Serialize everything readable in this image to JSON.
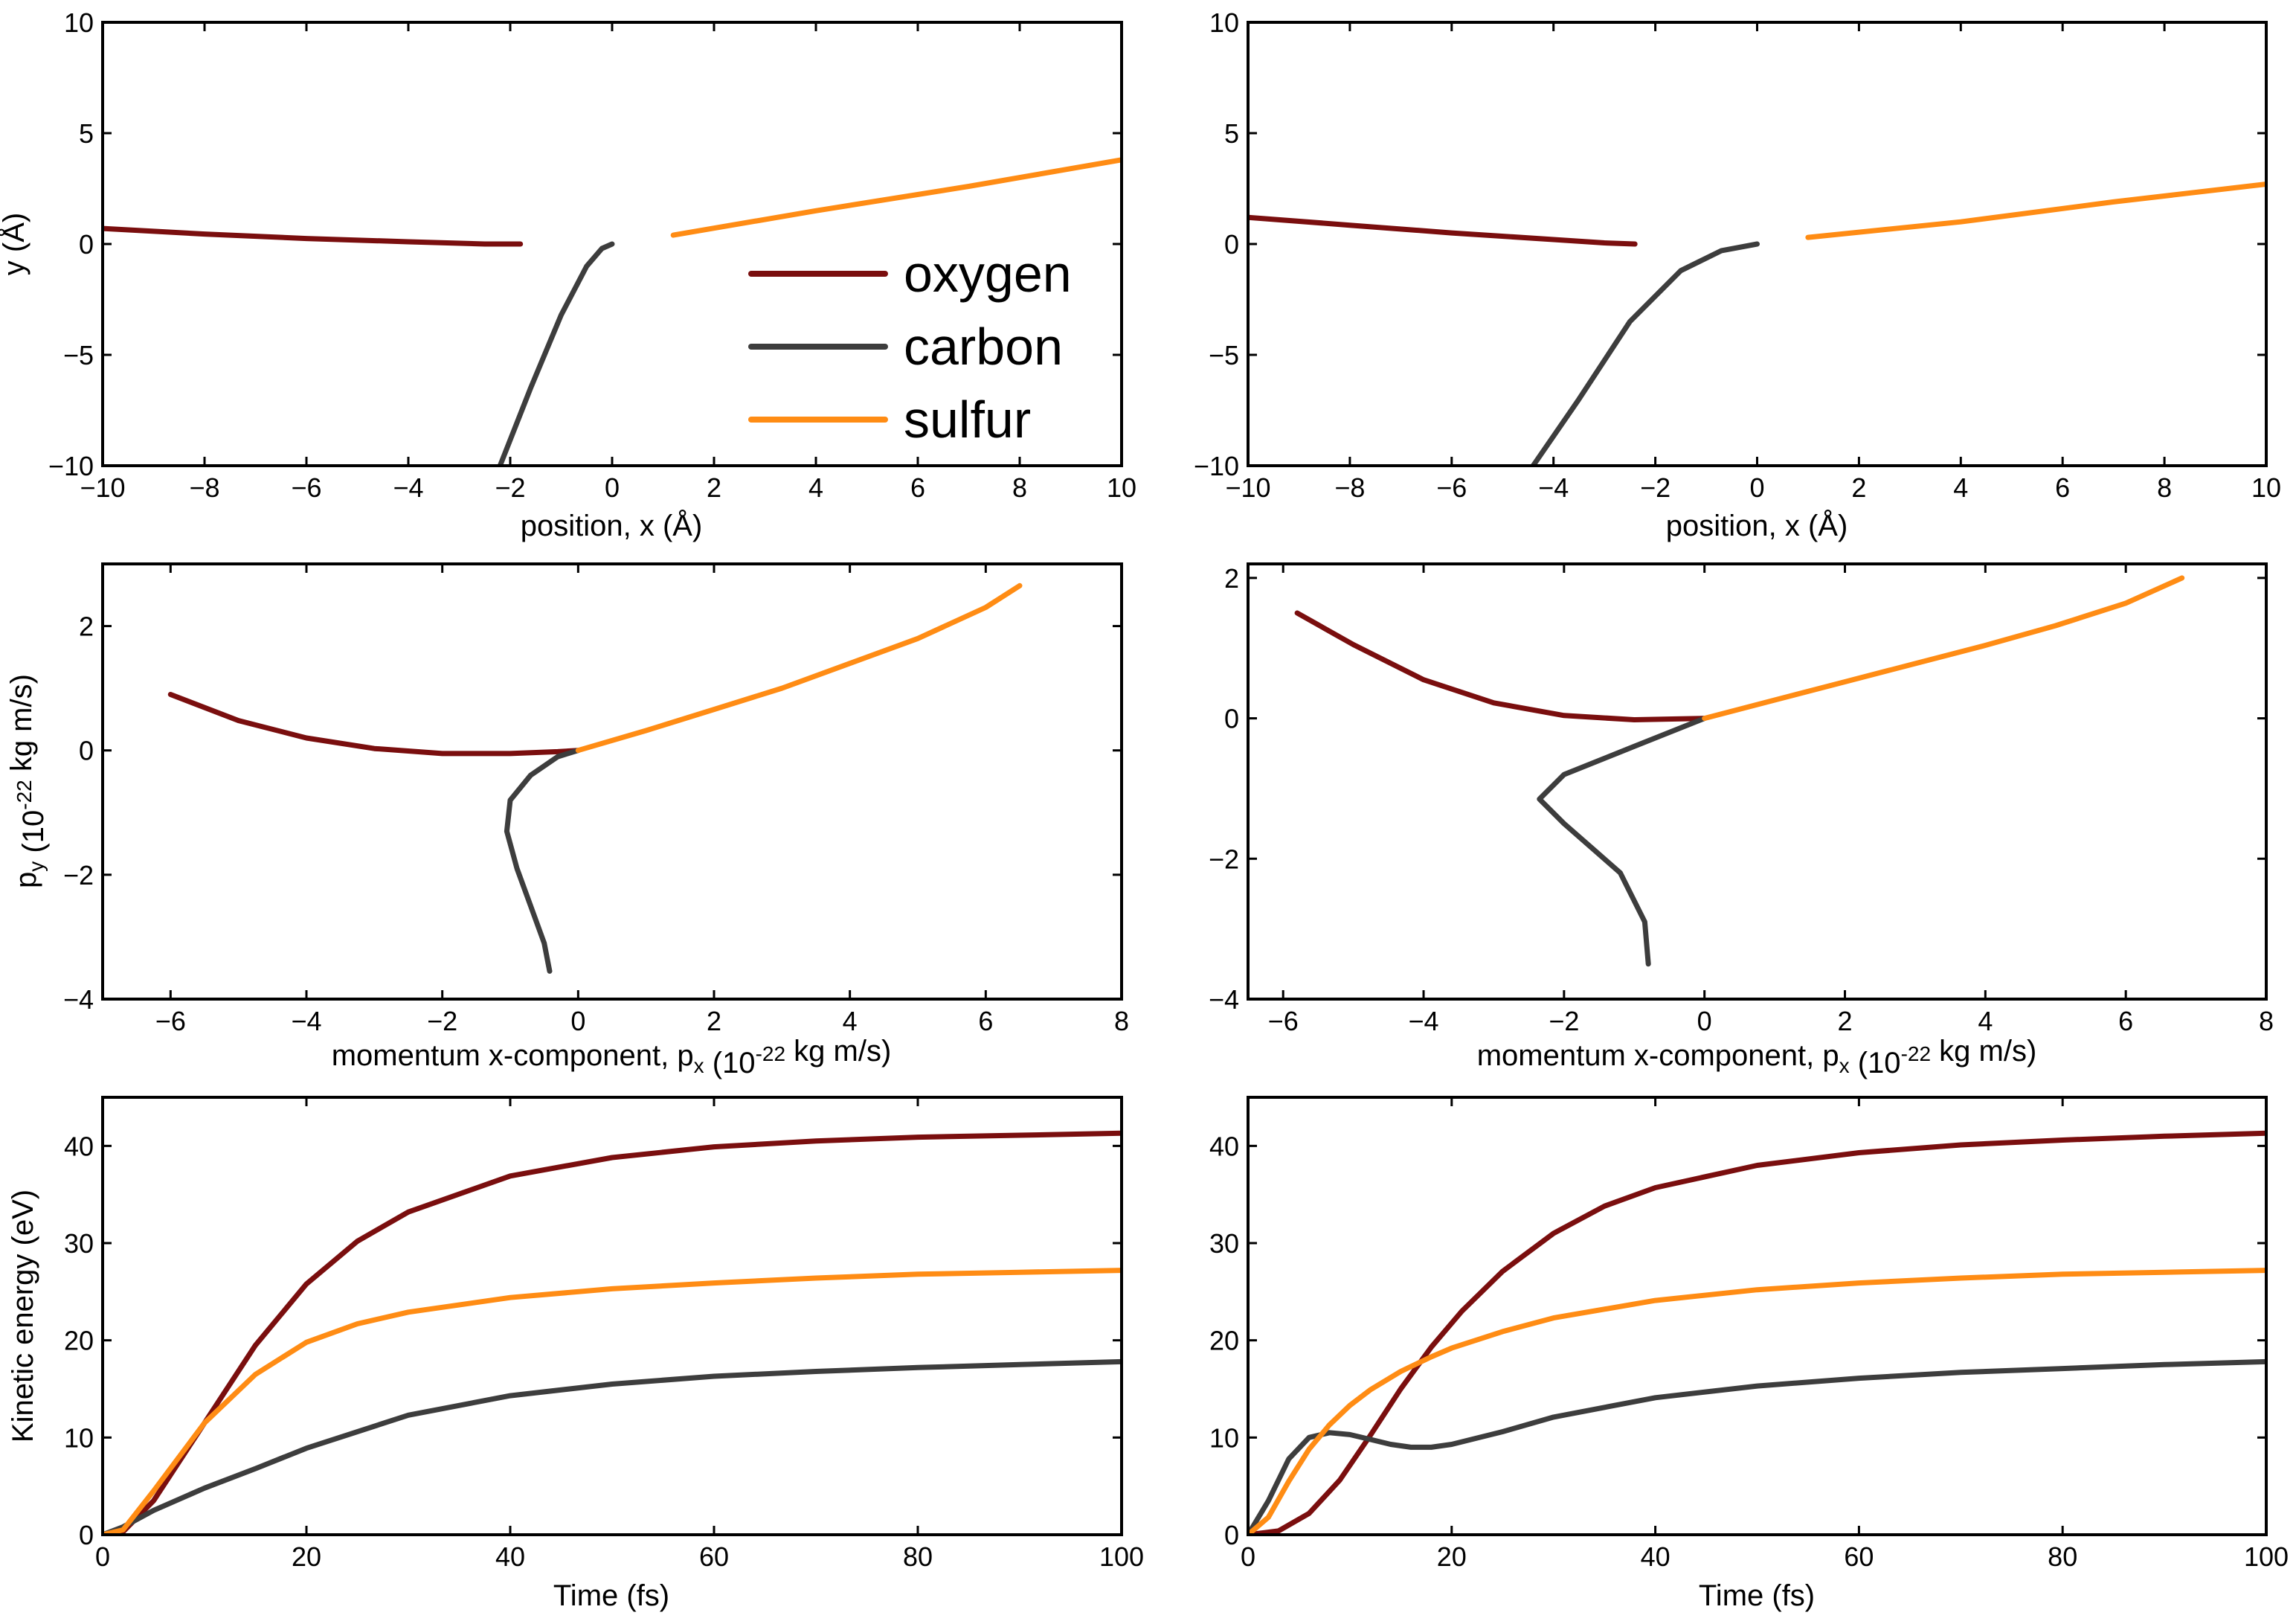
{
  "colors": {
    "oxygen": "#7a0e0e",
    "carbon": "#3d3d3d",
    "sulfur": "#ff8c14",
    "axes": "#000000",
    "background": "#ffffff"
  },
  "legend": {
    "location": "inside top-left panel, right of center",
    "entries": [
      {
        "series": "oxygen",
        "label": "oxygen"
      },
      {
        "series": "carbon",
        "label": "carbon"
      },
      {
        "series": "sulfur",
        "label": "sulfur"
      }
    ]
  },
  "chart_data": [
    {
      "id": "pos-left",
      "type": "line",
      "xlabel": "position, x (Å)",
      "ylabel": "y (Å)",
      "xlim": [
        -10,
        10
      ],
      "ylim": [
        -10,
        10
      ],
      "xticks": [
        -10,
        -8,
        -6,
        -4,
        -2,
        0,
        2,
        4,
        6,
        8,
        10
      ],
      "yticks": [
        -10,
        -5,
        0,
        5,
        10
      ],
      "series": [
        {
          "name": "oxygen",
          "x": [
            -10,
            -8,
            -6,
            -4,
            -2.5,
            -1.8
          ],
          "y": [
            0.7,
            0.45,
            0.25,
            0.1,
            0.0,
            0.0
          ]
        },
        {
          "name": "carbon",
          "x": [
            -2.2,
            -1.6,
            -1.0,
            -0.5,
            -0.2,
            0
          ],
          "y": [
            -10,
            -6.5,
            -3.2,
            -1.0,
            -0.2,
            0
          ]
        },
        {
          "name": "sulfur",
          "x": [
            1.2,
            4,
            7,
            10
          ],
          "y": [
            0.4,
            1.5,
            2.6,
            3.8
          ]
        }
      ]
    },
    {
      "id": "pos-right",
      "type": "line",
      "xlabel": "position, x (Å)",
      "ylabel": "",
      "xlim": [
        -10,
        10
      ],
      "ylim": [
        -10,
        10
      ],
      "xticks": [
        -10,
        -8,
        -6,
        -4,
        -2,
        0,
        2,
        4,
        6,
        8,
        10
      ],
      "yticks": [
        -10,
        -5,
        0,
        5,
        10
      ],
      "series": [
        {
          "name": "oxygen",
          "x": [
            -10,
            -8,
            -6,
            -4,
            -3,
            -2.4
          ],
          "y": [
            1.2,
            0.85,
            0.5,
            0.2,
            0.05,
            0.0
          ]
        },
        {
          "name": "carbon",
          "x": [
            -4.4,
            -3.5,
            -2.5,
            -1.5,
            -0.7,
            0
          ],
          "y": [
            -10,
            -7,
            -3.5,
            -1.2,
            -0.3,
            0
          ]
        },
        {
          "name": "sulfur",
          "x": [
            1,
            4,
            7,
            10
          ],
          "y": [
            0.3,
            1.0,
            1.9,
            2.7
          ]
        }
      ]
    },
    {
      "id": "mom-left",
      "type": "line",
      "xlabel": "momentum x-component, p_x (10^-22 kg m/s)",
      "ylabel": "p_y (10^-22 kg m/s)",
      "xlim": [
        -7,
        8
      ],
      "ylim": [
        -4,
        3
      ],
      "xticks": [
        -6,
        -4,
        -2,
        0,
        2,
        4,
        6,
        8
      ],
      "yticks": [
        -4,
        -2,
        0,
        2
      ],
      "series": [
        {
          "name": "oxygen",
          "x": [
            -6,
            -5,
            -4,
            -3,
            -2,
            -1,
            -0.3,
            0
          ],
          "y": [
            0.9,
            0.48,
            0.2,
            0.03,
            -0.05,
            -0.05,
            -0.02,
            0
          ]
        },
        {
          "name": "carbon",
          "x": [
            0,
            -0.3,
            -0.7,
            -1.0,
            -1.05,
            -0.9,
            -0.7,
            -0.5,
            -0.42
          ],
          "y": [
            0,
            -0.1,
            -0.4,
            -0.8,
            -1.3,
            -1.9,
            -2.5,
            -3.1,
            -3.55
          ]
        },
        {
          "name": "sulfur",
          "x": [
            0,
            1,
            2,
            3,
            4,
            5,
            6,
            6.5
          ],
          "y": [
            0,
            0.32,
            0.66,
            1.0,
            1.4,
            1.8,
            2.3,
            2.65
          ]
        }
      ]
    },
    {
      "id": "mom-right",
      "type": "line",
      "xlabel": "momentum x-component, p_x (10^-22 kg m/s)",
      "ylabel": "",
      "xlim": [
        -6.5,
        8
      ],
      "ylim": [
        -4,
        2.2
      ],
      "xticks": [
        -6,
        -4,
        -2,
        0,
        2,
        4,
        6,
        8
      ],
      "yticks": [
        -4,
        -2,
        0,
        2
      ],
      "series": [
        {
          "name": "oxygen",
          "x": [
            -5.8,
            -5,
            -4,
            -3,
            -2,
            -1,
            0
          ],
          "y": [
            1.5,
            1.05,
            0.55,
            0.22,
            0.04,
            -0.02,
            0
          ]
        },
        {
          "name": "carbon",
          "x": [
            0,
            -1,
            -2,
            -2.35,
            -2.0,
            -1.2,
            -0.85,
            -0.8
          ],
          "y": [
            0,
            -0.4,
            -0.8,
            -1.15,
            -1.5,
            -2.2,
            -2.9,
            -3.5
          ]
        },
        {
          "name": "sulfur",
          "x": [
            0,
            1,
            2,
            3,
            4,
            5,
            6,
            6.8
          ],
          "y": [
            0,
            0.26,
            0.52,
            0.78,
            1.04,
            1.32,
            1.64,
            2.0
          ]
        }
      ]
    },
    {
      "id": "ke-left",
      "type": "line",
      "xlabel": "Time (fs)",
      "ylabel": "Kinetic energy (eV)",
      "xlim": [
        0,
        100
      ],
      "ylim": [
        0,
        45
      ],
      "xticks": [
        0,
        20,
        40,
        60,
        80,
        100
      ],
      "yticks": [
        0,
        10,
        20,
        30,
        40
      ],
      "series": [
        {
          "name": "oxygen",
          "x": [
            0,
            2,
            5,
            10,
            15,
            20,
            25,
            30,
            40,
            50,
            60,
            70,
            80,
            90,
            100
          ],
          "y": [
            0,
            0.3,
            3.5,
            11.5,
            19.5,
            25.8,
            30.2,
            33.2,
            36.9,
            38.8,
            39.9,
            40.5,
            40.9,
            41.1,
            41.3
          ]
        },
        {
          "name": "carbon",
          "x": [
            0,
            2,
            5,
            10,
            15,
            20,
            30,
            40,
            50,
            60,
            70,
            80,
            90,
            100
          ],
          "y": [
            0,
            0.8,
            2.5,
            4.8,
            6.8,
            8.9,
            12.3,
            14.3,
            15.5,
            16.3,
            16.8,
            17.2,
            17.5,
            17.8
          ]
        },
        {
          "name": "sulfur",
          "x": [
            0,
            2,
            5,
            10,
            15,
            20,
            25,
            30,
            40,
            50,
            60,
            70,
            80,
            90,
            100
          ],
          "y": [
            0,
            0.5,
            4.5,
            11.5,
            16.5,
            19.8,
            21.7,
            22.9,
            24.4,
            25.3,
            25.9,
            26.4,
            26.8,
            27.0,
            27.2
          ]
        }
      ]
    },
    {
      "id": "ke-right",
      "type": "line",
      "xlabel": "Time (fs)",
      "ylabel": "",
      "xlim": [
        0,
        100
      ],
      "ylim": [
        0,
        45
      ],
      "xticks": [
        0,
        20,
        40,
        60,
        80,
        100
      ],
      "yticks": [
        0,
        10,
        20,
        30,
        40
      ],
      "series": [
        {
          "name": "oxygen",
          "x": [
            0,
            3,
            6,
            9,
            12,
            15,
            18,
            21,
            25,
            30,
            35,
            40,
            50,
            60,
            70,
            80,
            90,
            100
          ],
          "y": [
            0,
            0.4,
            2.2,
            5.6,
            10.2,
            15.0,
            19.3,
            23.0,
            27.1,
            31.0,
            33.8,
            35.7,
            38.0,
            39.3,
            40.1,
            40.6,
            41.0,
            41.3
          ]
        },
        {
          "name": "carbon",
          "x": [
            0,
            2,
            4,
            6,
            8,
            10,
            12,
            14,
            16,
            18,
            20,
            25,
            30,
            40,
            50,
            60,
            70,
            80,
            90,
            100
          ],
          "y": [
            0,
            3.5,
            7.8,
            10.0,
            10.5,
            10.3,
            9.8,
            9.3,
            9.0,
            9.0,
            9.3,
            10.6,
            12.1,
            14.1,
            15.3,
            16.1,
            16.7,
            17.1,
            17.5,
            17.8
          ]
        },
        {
          "name": "sulfur",
          "x": [
            0,
            2,
            4,
            6,
            8,
            10,
            12,
            15,
            18,
            20,
            25,
            30,
            40,
            50,
            60,
            70,
            80,
            90,
            100
          ],
          "y": [
            0,
            1.8,
            5.5,
            8.8,
            11.3,
            13.3,
            14.9,
            16.8,
            18.3,
            19.2,
            20.9,
            22.3,
            24.1,
            25.2,
            25.9,
            26.4,
            26.8,
            27.0,
            27.2
          ]
        }
      ]
    }
  ]
}
